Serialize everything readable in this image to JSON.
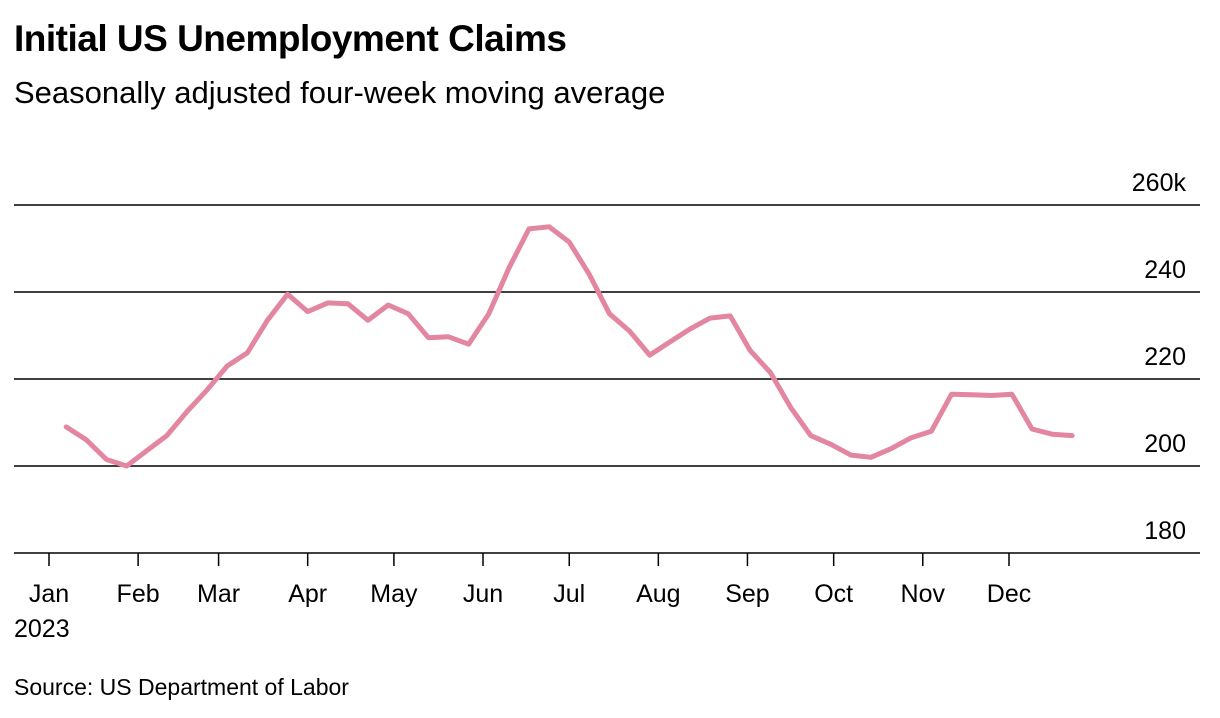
{
  "title": "Initial US Unemployment Claims",
  "subtitle": "Seasonally adjusted four-week moving average",
  "source": "Source: US Department of Labor",
  "colors": {
    "line": "#e3869f",
    "grid": "#000000"
  },
  "chart_data": {
    "type": "line",
    "title": "Initial US Unemployment Claims",
    "subtitle": "Seasonally adjusted four-week moving average",
    "xlabel": "",
    "ylabel": "",
    "ylim": [
      180,
      260
    ],
    "y_ticks": [
      260,
      240,
      220,
      200,
      180
    ],
    "y_tick_labels": [
      "260k",
      "240",
      "220",
      "200",
      "180"
    ],
    "x_tick_labels": [
      "Jan",
      "Feb",
      "Mar",
      "Apr",
      "May",
      "Jun",
      "Jul",
      "Aug",
      "Sep",
      "Oct",
      "Nov",
      "Dec"
    ],
    "x_year_label": "2023",
    "grid": true,
    "legend": "none",
    "series": [
      {
        "color": "#e3869f",
        "x": [
          "2023-01-07",
          "2023-01-14",
          "2023-01-21",
          "2023-01-28",
          "2023-02-04",
          "2023-02-11",
          "2023-02-18",
          "2023-02-25",
          "2023-03-04",
          "2023-03-11",
          "2023-03-18",
          "2023-03-25",
          "2023-04-01",
          "2023-04-08",
          "2023-04-15",
          "2023-04-22",
          "2023-04-29",
          "2023-05-06",
          "2023-05-13",
          "2023-05-20",
          "2023-05-27",
          "2023-06-03",
          "2023-06-10",
          "2023-06-17",
          "2023-06-24",
          "2023-07-01",
          "2023-07-08",
          "2023-07-15",
          "2023-07-22",
          "2023-07-29",
          "2023-08-05",
          "2023-08-12",
          "2023-08-19",
          "2023-08-26",
          "2023-09-02",
          "2023-09-09",
          "2023-09-16",
          "2023-09-23",
          "2023-09-30",
          "2023-10-07",
          "2023-10-14",
          "2023-10-21",
          "2023-10-28",
          "2023-11-04",
          "2023-11-11",
          "2023-11-18",
          "2023-11-25",
          "2023-12-02",
          "2023-12-09",
          "2023-12-16",
          "2023-12-23"
        ],
        "values": [
          209,
          206,
          201.5,
          200,
          203.5,
          207,
          212.5,
          217.5,
          223,
          226,
          233.5,
          239.5,
          235.5,
          237.5,
          237.3,
          233.5,
          237,
          235,
          229.5,
          229.7,
          228,
          235,
          245.5,
          254.5,
          255,
          251.5,
          244,
          235,
          231,
          225.5,
          228.5,
          231.5,
          234,
          234.5,
          226.5,
          221.5,
          213.5,
          207,
          205,
          202.5,
          202,
          204,
          206.5,
          208,
          216.5,
          216.4,
          216.2,
          216.5,
          208.5,
          207.3,
          207
        ]
      }
    ]
  }
}
